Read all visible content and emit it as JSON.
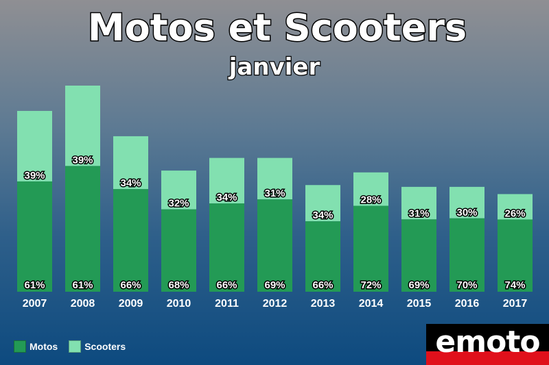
{
  "colors": {
    "motos": "#239a55",
    "scooters": "#82e0b0"
  },
  "chart_data": {
    "type": "bar",
    "stacked": true,
    "title": "Motos et Scooters",
    "subtitle": "janvier",
    "categories": [
      "2007",
      "2008",
      "2009",
      "2010",
      "2011",
      "2012",
      "2013",
      "2014",
      "2015",
      "2016",
      "2017"
    ],
    "series": [
      {
        "name": "Motos",
        "values": [
          61,
          61,
          66,
          68,
          66,
          69,
          66,
          72,
          69,
          70,
          74
        ]
      },
      {
        "name": "Scooters",
        "values": [
          39,
          39,
          34,
          32,
          34,
          31,
          34,
          28,
          31,
          30,
          26
        ]
      }
    ],
    "totals_relative": [
      100,
      114,
      86,
      67,
      74,
      74,
      59,
      66,
      58,
      58,
      54
    ],
    "value_suffix": "%",
    "legend_position": "bottom-left",
    "grid": false
  },
  "legend": {
    "motos": "Motos",
    "scooters": "Scooters"
  },
  "logo": {
    "text": "emoto"
  }
}
